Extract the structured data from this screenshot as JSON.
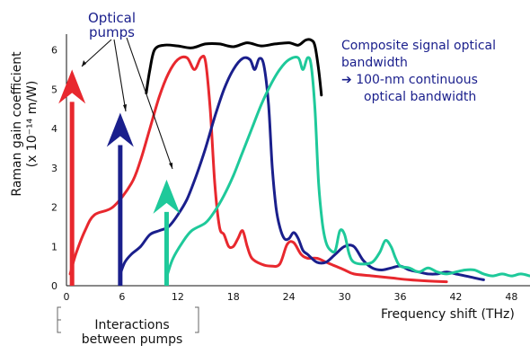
{
  "chart_data": {
    "type": "line",
    "xlabel": "Frequency shift (THz)",
    "ylabel": "Raman gain coefficient",
    "ylabel_unit": "(x 10⁻¹⁴ m/W)",
    "x_ticks": [
      "0",
      "6",
      "12",
      "18",
      "24",
      "30",
      "36",
      "42",
      "48"
    ],
    "y_ticks": [
      "0",
      "1",
      "2",
      "3",
      "4",
      "5",
      "6"
    ],
    "xlim": [
      0,
      50
    ],
    "ylim": [
      0,
      6.4
    ],
    "series": [
      {
        "color": "#e8282e",
        "points": [
          [
            0.4,
            0.3
          ],
          [
            1,
            0.8
          ],
          [
            2,
            1.4
          ],
          [
            3,
            1.8
          ],
          [
            5,
            2.0
          ],
          [
            7,
            2.6
          ],
          [
            8,
            3.2
          ],
          [
            9,
            4.0
          ],
          [
            10,
            4.8
          ],
          [
            11,
            5.4
          ],
          [
            12,
            5.75
          ],
          [
            13,
            5.8
          ],
          [
            13.8,
            5.5
          ],
          [
            14.5,
            5.8
          ],
          [
            15,
            5.7
          ],
          [
            15.5,
            4.5
          ],
          [
            16,
            2.6
          ],
          [
            16.5,
            1.5
          ],
          [
            17,
            1.3
          ],
          [
            17.5,
            1.0
          ],
          [
            18,
            1.0
          ],
          [
            18.5,
            1.2
          ],
          [
            19,
            1.4
          ],
          [
            19.5,
            1.0
          ],
          [
            20,
            0.7
          ],
          [
            21,
            0.55
          ],
          [
            22,
            0.5
          ],
          [
            23,
            0.55
          ],
          [
            23.8,
            1.05
          ],
          [
            24.5,
            1.1
          ],
          [
            25.3,
            0.8
          ],
          [
            26,
            0.7
          ],
          [
            27,
            0.7
          ],
          [
            28,
            0.6
          ],
          [
            29,
            0.5
          ],
          [
            30,
            0.4
          ],
          [
            31,
            0.3
          ],
          [
            33,
            0.25
          ],
          [
            35,
            0.2
          ],
          [
            37,
            0.15
          ],
          [
            39,
            0.12
          ],
          [
            41,
            0.1
          ]
        ]
      },
      {
        "color": "#1a1f8c",
        "points": [
          [
            5.8,
            0.3
          ],
          [
            6.3,
            0.6
          ],
          [
            7,
            0.8
          ],
          [
            8,
            1.0
          ],
          [
            9,
            1.3
          ],
          [
            10,
            1.4
          ],
          [
            11,
            1.5
          ],
          [
            12,
            1.8
          ],
          [
            13,
            2.2
          ],
          [
            14,
            2.8
          ],
          [
            15,
            3.5
          ],
          [
            16,
            4.3
          ],
          [
            17,
            5.0
          ],
          [
            18,
            5.5
          ],
          [
            19,
            5.78
          ],
          [
            19.8,
            5.75
          ],
          [
            20.3,
            5.5
          ],
          [
            20.8,
            5.78
          ],
          [
            21.3,
            5.6
          ],
          [
            21.8,
            4.6
          ],
          [
            22.2,
            3.0
          ],
          [
            22.6,
            2.0
          ],
          [
            23,
            1.5
          ],
          [
            23.5,
            1.2
          ],
          [
            24,
            1.2
          ],
          [
            24.5,
            1.35
          ],
          [
            25,
            1.2
          ],
          [
            25.5,
            0.9
          ],
          [
            26,
            0.8
          ],
          [
            27,
            0.6
          ],
          [
            28,
            0.6
          ],
          [
            29,
            0.8
          ],
          [
            30,
            1.0
          ],
          [
            31,
            1.0
          ],
          [
            32,
            0.65
          ],
          [
            33,
            0.45
          ],
          [
            34,
            0.4
          ],
          [
            35,
            0.45
          ],
          [
            36,
            0.5
          ],
          [
            37,
            0.4
          ],
          [
            38,
            0.35
          ],
          [
            39,
            0.3
          ],
          [
            40,
            0.3
          ],
          [
            41,
            0.35
          ],
          [
            42,
            0.3
          ],
          [
            43,
            0.25
          ],
          [
            44,
            0.2
          ],
          [
            45,
            0.15
          ]
        ]
      },
      {
        "color": "#1ec99a",
        "points": [
          [
            10.9,
            0.3
          ],
          [
            11.5,
            0.7
          ],
          [
            12.5,
            1.1
          ],
          [
            13.5,
            1.4
          ],
          [
            15,
            1.6
          ],
          [
            16,
            1.9
          ],
          [
            17,
            2.3
          ],
          [
            18,
            2.8
          ],
          [
            19,
            3.4
          ],
          [
            20,
            4.0
          ],
          [
            21,
            4.6
          ],
          [
            22,
            5.1
          ],
          [
            23,
            5.5
          ],
          [
            24,
            5.75
          ],
          [
            25,
            5.8
          ],
          [
            25.5,
            5.5
          ],
          [
            26,
            5.8
          ],
          [
            26.4,
            5.6
          ],
          [
            26.8,
            4.5
          ],
          [
            27.2,
            2.6
          ],
          [
            27.6,
            1.6
          ],
          [
            28,
            1.1
          ],
          [
            28.5,
            0.9
          ],
          [
            29,
            0.9
          ],
          [
            29.5,
            1.4
          ],
          [
            30,
            1.3
          ],
          [
            30.5,
            0.8
          ],
          [
            31,
            0.6
          ],
          [
            32,
            0.55
          ],
          [
            33,
            0.6
          ],
          [
            33.8,
            0.85
          ],
          [
            34.4,
            1.15
          ],
          [
            35,
            1.0
          ],
          [
            35.5,
            0.7
          ],
          [
            36,
            0.5
          ],
          [
            37,
            0.45
          ],
          [
            38,
            0.35
          ],
          [
            39,
            0.45
          ],
          [
            40,
            0.35
          ],
          [
            41,
            0.3
          ],
          [
            42,
            0.35
          ],
          [
            43,
            0.4
          ],
          [
            44,
            0.4
          ],
          [
            45,
            0.3
          ],
          [
            46,
            0.25
          ],
          [
            47,
            0.3
          ],
          [
            48,
            0.25
          ],
          [
            49,
            0.3
          ],
          [
            50,
            0.25
          ]
        ]
      },
      {
        "color": "#000000",
        "points": [
          [
            8.6,
            4.9
          ],
          [
            9,
            5.5
          ],
          [
            9.5,
            6.0
          ],
          [
            10.5,
            6.12
          ],
          [
            12,
            6.1
          ],
          [
            13.5,
            6.05
          ],
          [
            15,
            6.15
          ],
          [
            16.5,
            6.15
          ],
          [
            18,
            6.08
          ],
          [
            19.5,
            6.18
          ],
          [
            21,
            6.1
          ],
          [
            22.5,
            6.15
          ],
          [
            24,
            6.18
          ],
          [
            25,
            6.12
          ],
          [
            25.8,
            6.25
          ],
          [
            26.4,
            6.25
          ],
          [
            26.8,
            6.1
          ],
          [
            27.2,
            5.5
          ],
          [
            27.5,
            4.85
          ]
        ]
      }
    ],
    "pump_arrows": [
      {
        "x": 0.6,
        "y_end": 5.5,
        "color": "#e8282e"
      },
      {
        "x": 5.8,
        "y_end": 4.4,
        "color": "#1a1f8c"
      },
      {
        "x": 10.8,
        "y_end": 2.7,
        "color": "#1ec99a"
      }
    ]
  },
  "annotations": {
    "pumps_label_line1": "Optical",
    "pumps_label_line2": "pumps",
    "note_line1": "Composite signal optical",
    "note_line2": "bandwidth",
    "note_arrow": "➔",
    "note_line3": "100-nm continuous",
    "note_line4": "optical bandwidth",
    "bracket_line1": "Interactions",
    "bracket_line2": "between pumps"
  },
  "colors": {
    "pump_red": "#e8282e",
    "pump_blue": "#1a1f8c",
    "pump_green": "#1ec99a",
    "composite": "#000000",
    "text_navy": "#1a1f8c"
  }
}
